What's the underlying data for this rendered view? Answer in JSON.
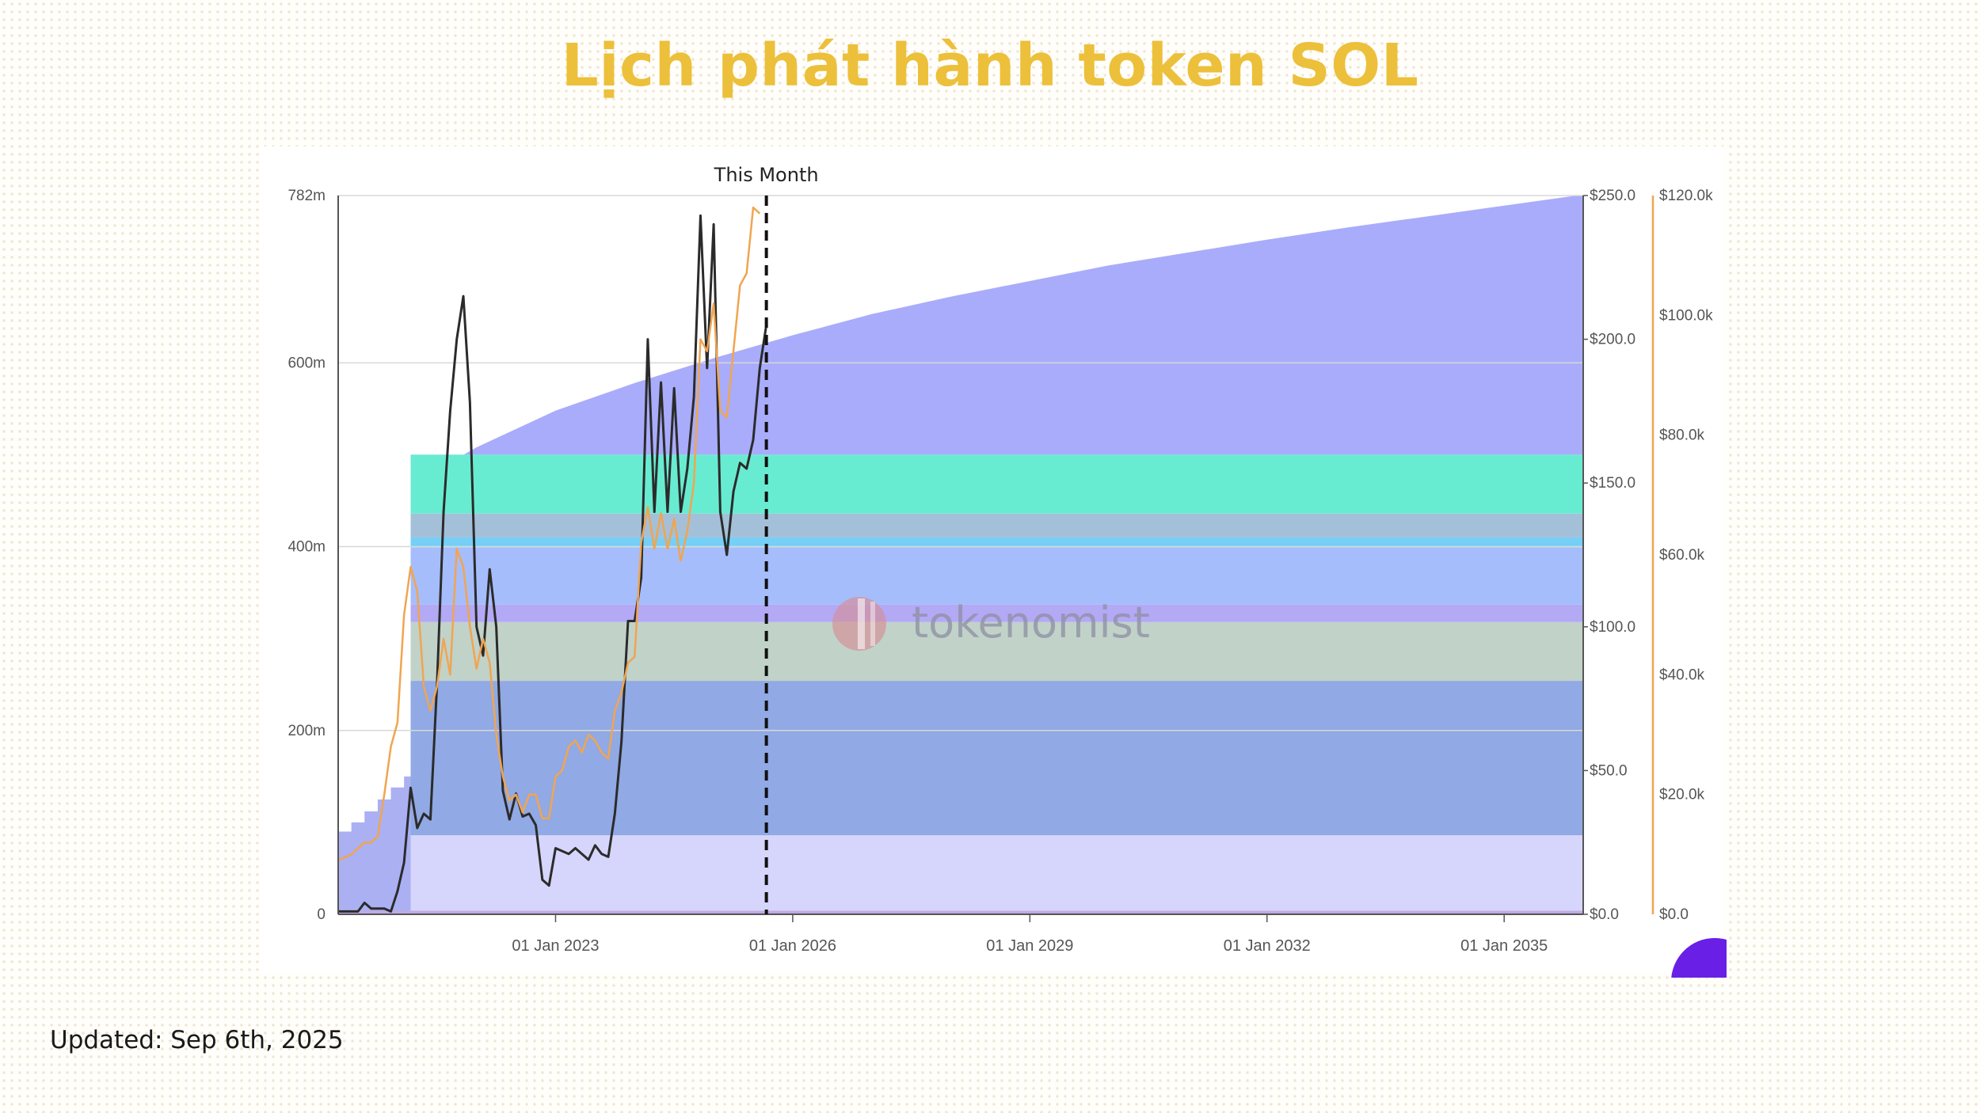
{
  "page": {
    "title": "Lịch phát hành token SOL",
    "updated": "Updated: Sep 6th, 2025"
  },
  "colors": {
    "title": "#ecc03a",
    "grey_price_line": "#2b2b2b",
    "orange_line": "#f0a550",
    "this_month_line": "#111111"
  },
  "chart_data": {
    "type": "area",
    "title": "",
    "watermark": "tokenomist",
    "this_month_label": "This Month",
    "this_month_date": "2025-09",
    "x_ticks": [
      "01 Jan 2023",
      "01 Jan 2026",
      "01 Jan 2029",
      "01 Jan 2032",
      "01 Jan 2035"
    ],
    "xlim": [
      "2020-04",
      "2036-01"
    ],
    "y_left": {
      "ticks": [
        "0",
        "200m",
        "400m",
        "600m",
        "782m"
      ],
      "tick_values": [
        0,
        200,
        400,
        600,
        782
      ],
      "ylim": [
        0,
        782
      ],
      "unit": "million tokens"
    },
    "y_right1": {
      "ticks": [
        "$0.0",
        "$50.0",
        "$100.0",
        "$150.0",
        "$200.0",
        "$250.0"
      ],
      "tick_values": [
        0,
        50,
        100,
        150,
        200,
        250
      ],
      "ylim": [
        0,
        250
      ]
    },
    "y_right2": {
      "ticks": [
        "$0.0",
        "$20.0k",
        "$40.0k",
        "$60.0k",
        "$80.0k",
        "$100.0k",
        "$120.0k"
      ],
      "tick_values": [
        0,
        20,
        40,
        60,
        80,
        100,
        120
      ],
      "ylim": [
        0,
        120
      ],
      "unit": "thousand $"
    },
    "allocation_bands": [
      {
        "from": 0,
        "to": 4,
        "color": "#c2a9e3"
      },
      {
        "from": 4,
        "to": 86,
        "color": "#d6d5fb"
      },
      {
        "from": 86,
        "to": 254,
        "color": "#91a9e4"
      },
      {
        "from": 254,
        "to": 318,
        "color": "#c1d2c9"
      },
      {
        "from": 318,
        "to": 337,
        "color": "#b3a9f5"
      },
      {
        "from": 337,
        "to": 399,
        "color": "#a6bdfc"
      },
      {
        "from": 399,
        "to": 410,
        "color": "#75cff7"
      },
      {
        "from": 410,
        "to": 436,
        "color": "#a4c0d9"
      },
      {
        "from": 436,
        "to": 500,
        "color": "#68ecd1"
      }
    ],
    "early_supply_points": [
      [
        "2020-04",
        90
      ],
      [
        "2020-06",
        100
      ],
      [
        "2020-08",
        112
      ],
      [
        "2020-10",
        125
      ],
      [
        "2020-12",
        138
      ],
      [
        "2021-02",
        150
      ],
      [
        "2021-03",
        467
      ]
    ],
    "inflation_band": {
      "color": "#a9acfb",
      "top_points": [
        [
          "2021-03",
          467
        ],
        [
          "2022-01",
          508
        ],
        [
          "2023-01",
          548
        ],
        [
          "2024-01",
          578
        ],
        [
          "2025-01",
          605
        ],
        [
          "2026-01",
          630
        ],
        [
          "2027-01",
          653
        ],
        [
          "2028-01",
          672
        ],
        [
          "2029-01",
          689
        ],
        [
          "2030-01",
          706
        ],
        [
          "2031-01",
          720
        ],
        [
          "2032-01",
          734
        ],
        [
          "2033-01",
          747
        ],
        [
          "2034-01",
          759
        ],
        [
          "2035-01",
          771
        ],
        [
          "2035-12",
          782
        ]
      ]
    },
    "series": [
      {
        "axis": "y_right1",
        "color": "#2b2b2b",
        "points": [
          [
            "2020-04",
            1
          ],
          [
            "2020-07",
            1
          ],
          [
            "2020-08",
            4
          ],
          [
            "2020-09",
            2
          ],
          [
            "2020-11",
            2
          ],
          [
            "2020-12",
            1
          ],
          [
            "2021-01",
            8
          ],
          [
            "2021-02",
            18
          ],
          [
            "2021-03",
            44
          ],
          [
            "2021-04",
            30
          ],
          [
            "2021-05",
            35
          ],
          [
            "2021-06",
            33
          ],
          [
            "2021-07",
            80
          ],
          [
            "2021-08",
            140
          ],
          [
            "2021-09",
            175
          ],
          [
            "2021-10",
            200
          ],
          [
            "2021-11",
            215
          ],
          [
            "2021-12",
            178
          ],
          [
            "2022-01",
            100
          ],
          [
            "2022-02",
            90
          ],
          [
            "2022-03",
            120
          ],
          [
            "2022-04",
            100
          ],
          [
            "2022-05",
            43
          ],
          [
            "2022-06",
            33
          ],
          [
            "2022-07",
            42
          ],
          [
            "2022-08",
            34
          ],
          [
            "2022-09",
            35
          ],
          [
            "2022-10",
            31
          ],
          [
            "2022-11",
            12
          ],
          [
            "2022-12",
            10
          ],
          [
            "2023-01",
            23
          ],
          [
            "2023-02",
            22
          ],
          [
            "2023-03",
            21
          ],
          [
            "2023-04",
            23
          ],
          [
            "2023-05",
            21
          ],
          [
            "2023-06",
            19
          ],
          [
            "2023-07",
            24
          ],
          [
            "2023-08",
            21
          ],
          [
            "2023-09",
            20
          ],
          [
            "2023-10",
            35
          ],
          [
            "2023-11",
            60
          ],
          [
            "2023-12",
            102
          ],
          [
            "2024-01",
            102
          ],
          [
            "2024-02",
            117
          ],
          [
            "2024-03",
            200
          ],
          [
            "2024-04",
            140
          ],
          [
            "2024-05",
            185
          ],
          [
            "2024-06",
            140
          ],
          [
            "2024-07",
            183
          ],
          [
            "2024-08",
            140
          ],
          [
            "2024-09",
            155
          ],
          [
            "2024-10",
            180
          ],
          [
            "2024-11",
            243
          ],
          [
            "2024-12",
            190
          ],
          [
            "2025-01",
            240
          ],
          [
            "2025-02",
            140
          ],
          [
            "2025-03",
            125
          ],
          [
            "2025-04",
            147
          ],
          [
            "2025-05",
            157
          ],
          [
            "2025-06",
            155
          ],
          [
            "2025-07",
            165
          ],
          [
            "2025-08",
            190
          ],
          [
            "2025-09",
            205
          ]
        ]
      },
      {
        "axis": "y_right2",
        "color": "#f0a550",
        "points": [
          [
            "2020-04",
            9
          ],
          [
            "2020-06",
            10
          ],
          [
            "2020-07",
            11
          ],
          [
            "2020-08",
            12
          ],
          [
            "2020-09",
            12
          ],
          [
            "2020-10",
            13
          ],
          [
            "2020-11",
            20
          ],
          [
            "2020-12",
            28
          ],
          [
            "2021-01",
            32
          ],
          [
            "2021-02",
            50
          ],
          [
            "2021-03",
            58
          ],
          [
            "2021-04",
            54
          ],
          [
            "2021-05",
            38
          ],
          [
            "2021-06",
            34
          ],
          [
            "2021-07",
            38
          ],
          [
            "2021-08",
            46
          ],
          [
            "2021-09",
            40
          ],
          [
            "2021-10",
            61
          ],
          [
            "2021-11",
            58
          ],
          [
            "2021-12",
            48
          ],
          [
            "2022-01",
            41
          ],
          [
            "2022-02",
            46
          ],
          [
            "2022-03",
            42
          ],
          [
            "2022-04",
            30
          ],
          [
            "2022-05",
            23
          ],
          [
            "2022-06",
            19
          ],
          [
            "2022-07",
            20
          ],
          [
            "2022-08",
            17
          ],
          [
            "2022-09",
            20
          ],
          [
            "2022-10",
            20
          ],
          [
            "2022-11",
            16
          ],
          [
            "2022-12",
            16
          ],
          [
            "2023-01",
            23
          ],
          [
            "2023-02",
            24
          ],
          [
            "2023-03",
            28
          ],
          [
            "2023-04",
            29
          ],
          [
            "2023-05",
            27
          ],
          [
            "2023-06",
            30
          ],
          [
            "2023-07",
            29
          ],
          [
            "2023-08",
            27
          ],
          [
            "2023-09",
            26
          ],
          [
            "2023-10",
            34
          ],
          [
            "2023-11",
            37
          ],
          [
            "2023-12",
            42
          ],
          [
            "2024-01",
            43
          ],
          [
            "2024-02",
            62
          ],
          [
            "2024-03",
            68
          ],
          [
            "2024-04",
            61
          ],
          [
            "2024-05",
            67
          ],
          [
            "2024-06",
            61
          ],
          [
            "2024-07",
            66
          ],
          [
            "2024-08",
            59
          ],
          [
            "2024-09",
            64
          ],
          [
            "2024-10",
            72
          ],
          [
            "2024-11",
            96
          ],
          [
            "2024-12",
            94
          ],
          [
            "2025-01",
            102
          ],
          [
            "2025-02",
            84
          ],
          [
            "2025-03",
            83
          ],
          [
            "2025-04",
            94
          ],
          [
            "2025-05",
            105
          ],
          [
            "2025-06",
            107
          ],
          [
            "2025-07",
            118
          ],
          [
            "2025-08",
            117
          ]
        ]
      }
    ]
  }
}
